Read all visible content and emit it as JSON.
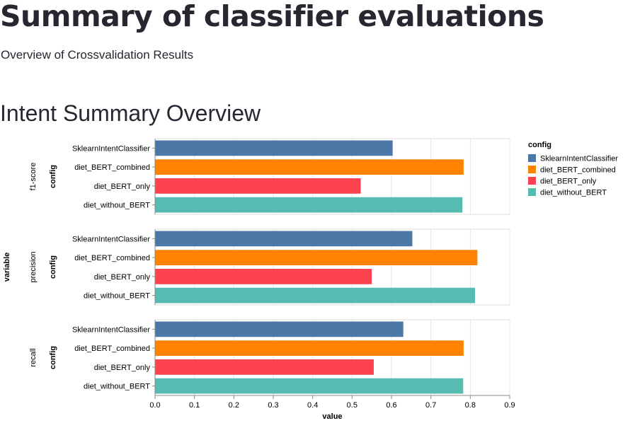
{
  "page": {
    "title": "Summary of classifier evaluations",
    "subtitle": "Overview of Crossvalidation Results",
    "section_title": "Intent Summary Overview"
  },
  "chart_data": {
    "type": "bar",
    "orientation": "horizontal",
    "facet_field": "variable",
    "y_field": "config",
    "x_label": "value",
    "xlim": [
      0,
      0.9
    ],
    "x_ticks": [
      0.0,
      0.1,
      0.2,
      0.3,
      0.4,
      0.5,
      0.6,
      0.7,
      0.8,
      0.9
    ],
    "grid": true,
    "legend_title": "config",
    "legend_position": "right",
    "configs": [
      {
        "name": "SklearnIntentClassifier",
        "color": "#4c78a8"
      },
      {
        "name": "diet_BERT_combined",
        "color": "#ff8200"
      },
      {
        "name": "diet_BERT_only",
        "color": "#fc424e"
      },
      {
        "name": "diet_without_BERT",
        "color": "#56bcb2"
      }
    ],
    "facets": [
      {
        "name": "f1-score",
        "values": [
          0.603,
          0.783,
          0.522,
          0.78
        ]
      },
      {
        "name": "precision",
        "values": [
          0.653,
          0.818,
          0.55,
          0.812
        ]
      },
      {
        "name": "recall",
        "values": [
          0.63,
          0.783,
          0.555,
          0.782
        ]
      }
    ]
  }
}
